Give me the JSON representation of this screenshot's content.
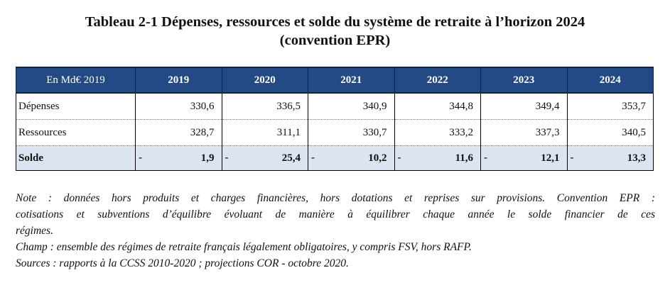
{
  "title": {
    "line1": "Tableau 2-1 Dépenses, ressources et solde du système de retraite à l’horizon 2024",
    "line2": "(convention EPR)"
  },
  "table": {
    "corner": "En Md€ 2019",
    "years": [
      "2019",
      "2020",
      "2021",
      "2022",
      "2023",
      "2024"
    ],
    "rows": [
      {
        "label": "Dépenses",
        "values": [
          "330,6",
          "336,5",
          "340,9",
          "344,8",
          "349,4",
          "353,7"
        ]
      },
      {
        "label": "Ressources",
        "values": [
          "328,7",
          "311,1",
          "330,7",
          "333,2",
          "337,3",
          "340,5"
        ]
      }
    ],
    "solde": {
      "label": "Solde",
      "sign": "-",
      "values": [
        "1,9",
        "25,4",
        "10,2",
        "11,6",
        "12,1",
        "13,3"
      ]
    }
  },
  "notes": {
    "note_line1": "Note : données hors produits et charges financières, hors dotations et reprises sur provisions. Convention EPR :",
    "note_line2": "cotisations et subventions d’équilibre évoluant de manière à équilibrer chaque année le solde financier de ces",
    "note_line3": "régimes.",
    "champ": "Champ : ensemble des régimes de retraite français légalement obligatoires, y compris FSV, hors RAFP.",
    "sources": "Sources : rapports à la CCSS 2010-2020 ; projections COR - octobre 2020."
  }
}
